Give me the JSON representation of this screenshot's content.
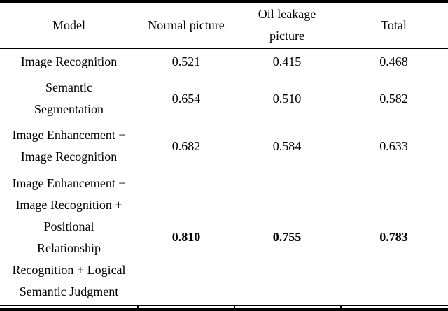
{
  "page": {
    "background_color": "#ffffff",
    "text_color": "#000000",
    "rule_color": "#000000"
  },
  "table": {
    "columns": [
      {
        "label": "Model"
      },
      {
        "label": "Normal picture"
      },
      {
        "label": "Oil leakage\npicture"
      },
      {
        "label": "Total"
      }
    ],
    "rows": [
      {
        "model": "Image Recognition",
        "normal_picture": "0.521",
        "oil_leakage_picture": "0.415",
        "total": "0.468",
        "bold": false
      },
      {
        "model": "Semantic\nSegmentation",
        "normal_picture": "0.654",
        "oil_leakage_picture": "0.510",
        "total": "0.582",
        "bold": false
      },
      {
        "model": "Image Enhancement +\nImage Recognition",
        "normal_picture": "0.682",
        "oil_leakage_picture": "0.584",
        "total": "0.633",
        "bold": false
      },
      {
        "model": "Image Enhancement +\nImage Recognition +\nPositional\nRelationship\nRecognition + Logical\nSemantic Judgment",
        "normal_picture": "0.810",
        "oil_leakage_picture": "0.755",
        "total": "0.783",
        "bold": true
      }
    ]
  }
}
